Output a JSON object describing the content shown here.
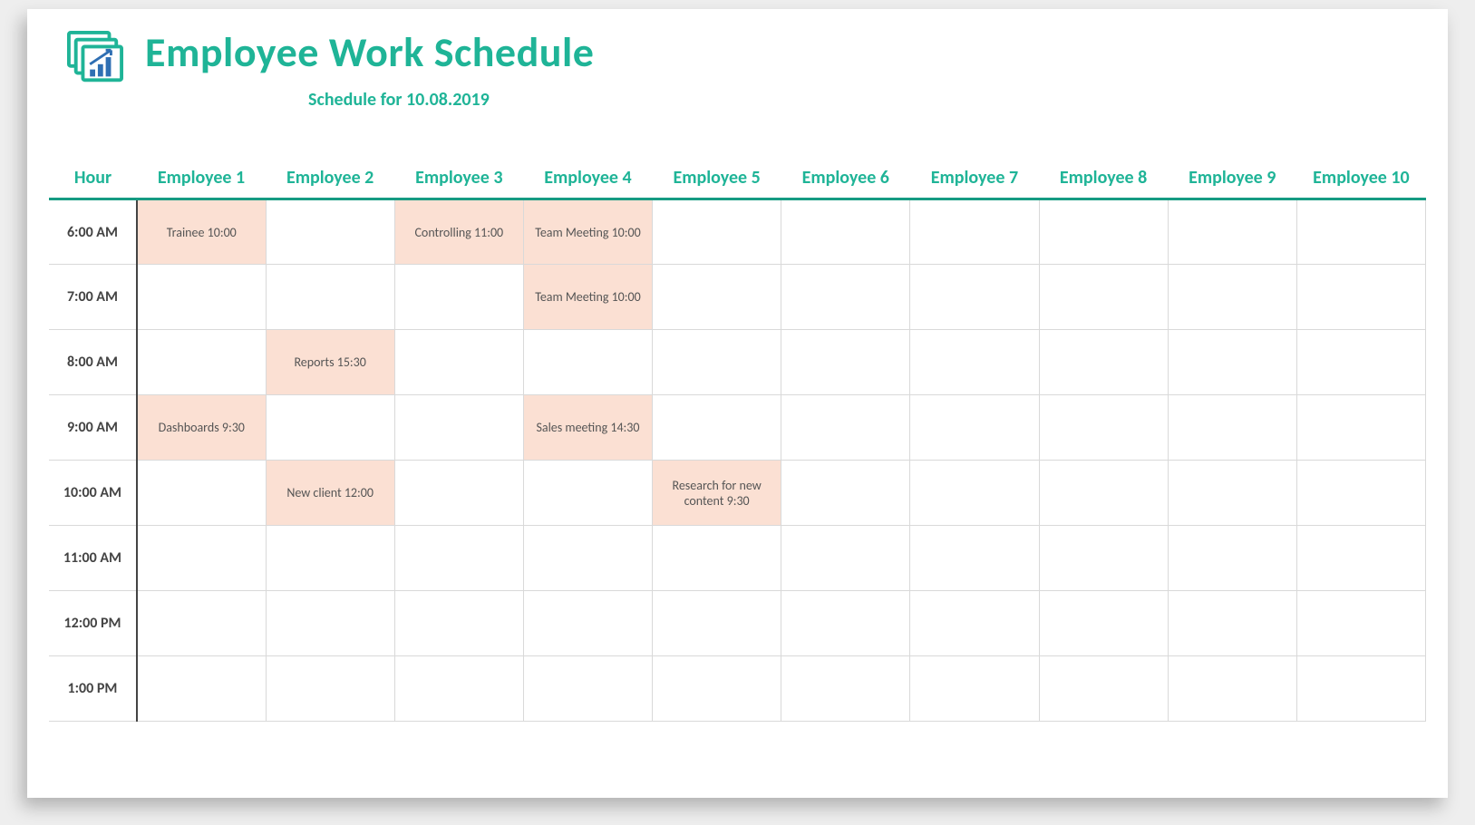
{
  "colors": {
    "accent": "#1fb497",
    "accent_dark": "#169b82",
    "cell_border": "#d9d9d9",
    "filled_bg": "#fbe0d3",
    "text_muted": "#555555",
    "hour_border": "#444444"
  },
  "header": {
    "title": "Employee Work Schedule",
    "subtitle": "Schedule for 10.08.2019"
  },
  "table": {
    "hour_label": "Hour",
    "employees": [
      "Employee 1",
      "Employee 2",
      "Employee 3",
      "Employee 4",
      "Employee 5",
      "Employee 6",
      "Employee 7",
      "Employee 8",
      "Employee 9",
      "Employee 10"
    ],
    "hours": [
      "6:00 AM",
      "7:00 AM",
      "8:00 AM",
      "9:00 AM",
      "10:00 AM",
      "11:00 AM",
      "12:00 PM",
      "1:00 PM"
    ],
    "entries": {
      "0": {
        "0": "Trainee 10:00",
        "2": "Controlling 11:00",
        "3": "Team Meeting 10:00"
      },
      "1": {
        "3": "Team Meeting 10:00"
      },
      "2": {
        "1": "Reports 15:30"
      },
      "3": {
        "0": "Dashboards 9:30",
        "3": "Sales meeting 14:30"
      },
      "4": {
        "1": "New client 12:00",
        "4": "Research for new content 9:30"
      },
      "5": {},
      "6": {},
      "7": {}
    }
  }
}
